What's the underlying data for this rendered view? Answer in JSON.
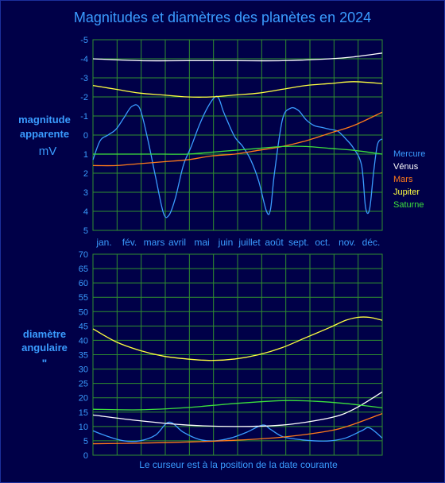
{
  "title": "Magnitudes et diamètres des planètes en 2024",
  "footer": "Le curseur est à la position de la date courante",
  "top_axis_label": {
    "line1": "magnitude",
    "line2": "apparente",
    "line3": "mV"
  },
  "bottom_axis_label": {
    "line1": "diamètre",
    "line2": "angulaire",
    "line3": "\""
  },
  "months": [
    "jan.",
    "fév.",
    "mars",
    "avril",
    "mai",
    "juin",
    "juillet",
    "août",
    "sept.",
    "oct.",
    "nov.",
    "déc."
  ],
  "legend": [
    {
      "name": "Mercure",
      "color": "#3a9cff"
    },
    {
      "name": "Vénus",
      "color": "#ffffff"
    },
    {
      "name": "Mars",
      "color": "#ff7a1a"
    },
    {
      "name": "Jupiter",
      "color": "#ffff40"
    },
    {
      "name": "Saturne",
      "color": "#3ce03c"
    }
  ],
  "chart_data": [
    {
      "type": "line",
      "title": "magnitude apparente mV",
      "x_unit": "day of year 2024",
      "ylim": [
        5,
        -5
      ],
      "y_ticks": [
        "-5",
        "-4",
        "-3",
        "-2",
        "-1",
        "0",
        "1",
        "2",
        "3",
        "4",
        "5"
      ],
      "grid": true,
      "legend_position": "right",
      "series": [
        {
          "name": "Mercure",
          "color": "#3a9cff",
          "x": [
            1,
            10,
            20,
            30,
            40,
            50,
            60,
            70,
            80,
            90,
            97,
            105,
            115,
            125,
            135,
            145,
            155,
            160,
            165,
            170,
            180,
            190,
            200,
            210,
            220,
            225,
            230,
            240,
            250,
            260,
            270,
            280,
            290,
            300,
            310,
            320,
            330,
            340,
            345,
            350,
            355,
            360,
            366
          ],
          "y": [
            1.3,
            0.3,
            0,
            -0.3,
            -0.9,
            -1.5,
            -1.4,
            0.2,
            2.2,
            4.1,
            4.2,
            3.3,
            1.6,
            0.6,
            -0.5,
            -1.4,
            -2.0,
            -1.9,
            -1.3,
            -0.8,
            0.1,
            0.6,
            1.3,
            2.4,
            4.0,
            3.9,
            2.0,
            -0.8,
            -1.4,
            -1.3,
            -0.8,
            -0.5,
            -0.4,
            -0.3,
            -0.2,
            0.2,
            0.7,
            1.6,
            3.8,
            3.9,
            2.0,
            0.5,
            0.2
          ]
        },
        {
          "name": "Vénus",
          "color": "#ffffff",
          "x": [
            1,
            60,
            120,
            180,
            240,
            300,
            330,
            366
          ],
          "y": [
            -4.0,
            -3.9,
            -3.9,
            -3.9,
            -3.9,
            -4.0,
            -4.1,
            -4.3
          ]
        },
        {
          "name": "Mars",
          "color": "#ff7a1a",
          "x": [
            1,
            30,
            60,
            90,
            120,
            150,
            180,
            210,
            240,
            270,
            300,
            330,
            366
          ],
          "y": [
            1.6,
            1.6,
            1.5,
            1.4,
            1.3,
            1.1,
            1.0,
            0.8,
            0.6,
            0.3,
            -0.1,
            -0.5,
            -1.2
          ]
        },
        {
          "name": "Jupiter",
          "color": "#ffff40",
          "x": [
            1,
            30,
            60,
            90,
            120,
            150,
            180,
            210,
            240,
            270,
            300,
            330,
            366
          ],
          "y": [
            -2.6,
            -2.4,
            -2.2,
            -2.1,
            -2.0,
            -2.0,
            -2.1,
            -2.2,
            -2.4,
            -2.6,
            -2.7,
            -2.8,
            -2.7
          ]
        },
        {
          "name": "Saturne",
          "color": "#3ce03c",
          "x": [
            1,
            30,
            60,
            90,
            120,
            150,
            180,
            210,
            240,
            270,
            300,
            330,
            366
          ],
          "y": [
            1.0,
            1.0,
            1.0,
            1.0,
            1.0,
            0.9,
            0.8,
            0.7,
            0.6,
            0.6,
            0.7,
            0.8,
            1.0
          ]
        }
      ]
    },
    {
      "type": "line",
      "title": "diamètre angulaire \"",
      "x_unit": "day of year 2024",
      "ylim": [
        0,
        70
      ],
      "y_ticks": [
        "70",
        "65",
        "60",
        "55",
        "50",
        "45",
        "40",
        "35",
        "30",
        "25",
        "20",
        "15",
        "10",
        "5",
        "0"
      ],
      "grid": true,
      "series": [
        {
          "name": "Mercure",
          "color": "#3a9cff",
          "x": [
            1,
            20,
            40,
            60,
            80,
            97,
            115,
            135,
            155,
            175,
            195,
            215,
            225,
            240,
            260,
            280,
            300,
            320,
            340,
            350,
            366
          ],
          "y": [
            8.5,
            6.5,
            5.0,
            5.0,
            7.0,
            11.5,
            8.0,
            5.5,
            5.0,
            6.0,
            8.0,
            10.5,
            9.0,
            6.5,
            5.5,
            5.0,
            5.0,
            6.0,
            8.5,
            9.5,
            6.0
          ]
        },
        {
          "name": "Vénus",
          "color": "#ffffff",
          "x": [
            1,
            60,
            120,
            180,
            240,
            300,
            330,
            366
          ],
          "y": [
            14,
            12,
            10.5,
            10,
            10.5,
            13,
            16,
            22
          ]
        },
        {
          "name": "Mars",
          "color": "#ff7a1a",
          "x": [
            1,
            60,
            120,
            180,
            240,
            300,
            330,
            366
          ],
          "y": [
            4.0,
            4.2,
            4.6,
            5.2,
            6.3,
            8.5,
            10.8,
            14.5
          ]
        },
        {
          "name": "Jupiter",
          "color": "#ffff40",
          "x": [
            1,
            30,
            60,
            90,
            120,
            150,
            180,
            210,
            240,
            270,
            300,
            320,
            335,
            350,
            366
          ],
          "y": [
            44,
            39.5,
            36.5,
            34.5,
            33.5,
            33.0,
            33.5,
            35.0,
            37.5,
            41.0,
            44.5,
            47.0,
            48.0,
            48.0,
            47.0
          ]
        },
        {
          "name": "Saturne",
          "color": "#3ce03c",
          "x": [
            1,
            60,
            120,
            180,
            240,
            280,
            320,
            366
          ],
          "y": [
            16,
            15.8,
            16.6,
            18.0,
            19.0,
            18.8,
            18.0,
            16.5
          ]
        }
      ]
    }
  ]
}
